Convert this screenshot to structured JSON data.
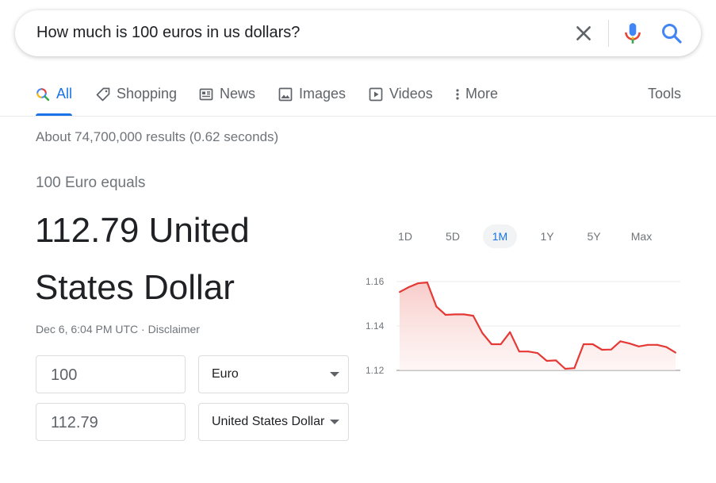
{
  "search": {
    "query": "How much is 100 euros in us dollars?"
  },
  "tabs": [
    {
      "label": "All",
      "icon": "search-icon",
      "active": true
    },
    {
      "label": "Shopping",
      "icon": "tag-icon"
    },
    {
      "label": "News",
      "icon": "news-icon"
    },
    {
      "label": "Images",
      "icon": "image-icon"
    },
    {
      "label": "Videos",
      "icon": "play-icon"
    },
    {
      "label": "More",
      "icon": "more-vert-icon"
    }
  ],
  "tools_label": "Tools",
  "result_stats": "About 74,700,000 results (0.62 seconds)",
  "converter": {
    "equals_label": "100 Euro equals",
    "result_value": "112.79 United States Dollar",
    "timestamp": "Dec 6, 6:04 PM UTC",
    "separator": " · ",
    "disclaimer": "Disclaimer",
    "from_amount": "100",
    "from_currency": "Euro",
    "to_amount": "112.79",
    "to_currency": "United States Dollar"
  },
  "ranges": [
    "1D",
    "5D",
    "1M",
    "1Y",
    "5Y",
    "Max"
  ],
  "active_range": "1M",
  "colors": {
    "accent": "#1a73e8",
    "line": "#e53935",
    "fill": "#fbe3e3"
  },
  "chart_data": {
    "type": "area",
    "y_ticks": [
      "1.16",
      "1.14",
      "1.12"
    ],
    "ylim": [
      1.12,
      1.16
    ],
    "values": [
      1.1553,
      1.1575,
      1.1592,
      1.1596,
      1.1487,
      1.145,
      1.1452,
      1.1452,
      1.1446,
      1.1368,
      1.1318,
      1.1318,
      1.1372,
      1.1285,
      1.1285,
      1.1278,
      1.1243,
      1.1245,
      1.1207,
      1.121,
      1.1318,
      1.1318,
      1.1293,
      1.1294,
      1.1331,
      1.1321,
      1.1308,
      1.1315,
      1.1315,
      1.1305,
      1.128
    ]
  }
}
